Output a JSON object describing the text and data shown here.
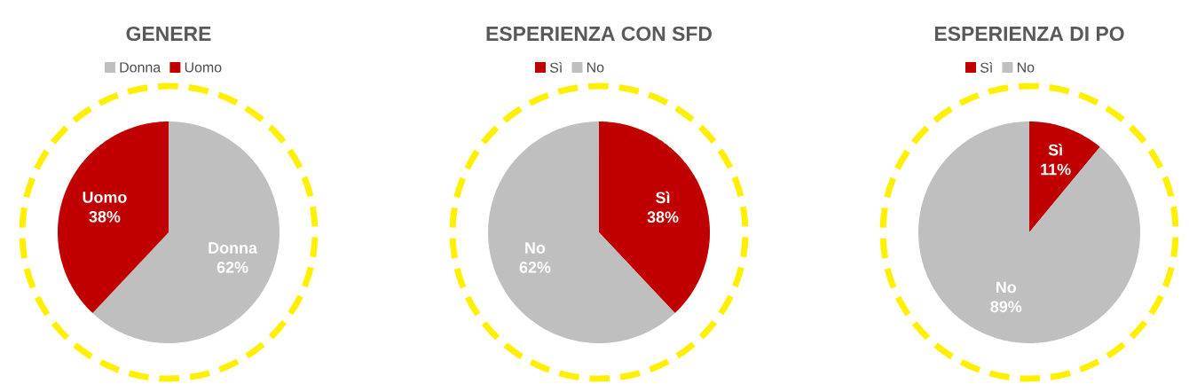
{
  "chart_data": [
    {
      "type": "pie",
      "title": "GENERE",
      "categories": [
        "Donna",
        "Uomo"
      ],
      "values": [
        62,
        38
      ],
      "colors": [
        "#bfbfbf",
        "#c00000"
      ],
      "value_labels": [
        "62%",
        "38%"
      ],
      "legend": "top"
    },
    {
      "type": "pie",
      "title": "ESPERIENZA CON SFD",
      "categories": [
        "Sì",
        "No"
      ],
      "values": [
        38,
        62
      ],
      "colors": [
        "#c00000",
        "#bfbfbf"
      ],
      "value_labels": [
        "38%",
        "62%"
      ],
      "legend": "top"
    },
    {
      "type": "pie",
      "title": "ESPERIENZA DI PO",
      "categories": [
        "Sì",
        "No"
      ],
      "values": [
        11,
        89
      ],
      "colors": [
        "#c00000",
        "#bfbfbf"
      ],
      "value_labels": [
        "11%",
        "89%"
      ],
      "legend": "top"
    }
  ]
}
